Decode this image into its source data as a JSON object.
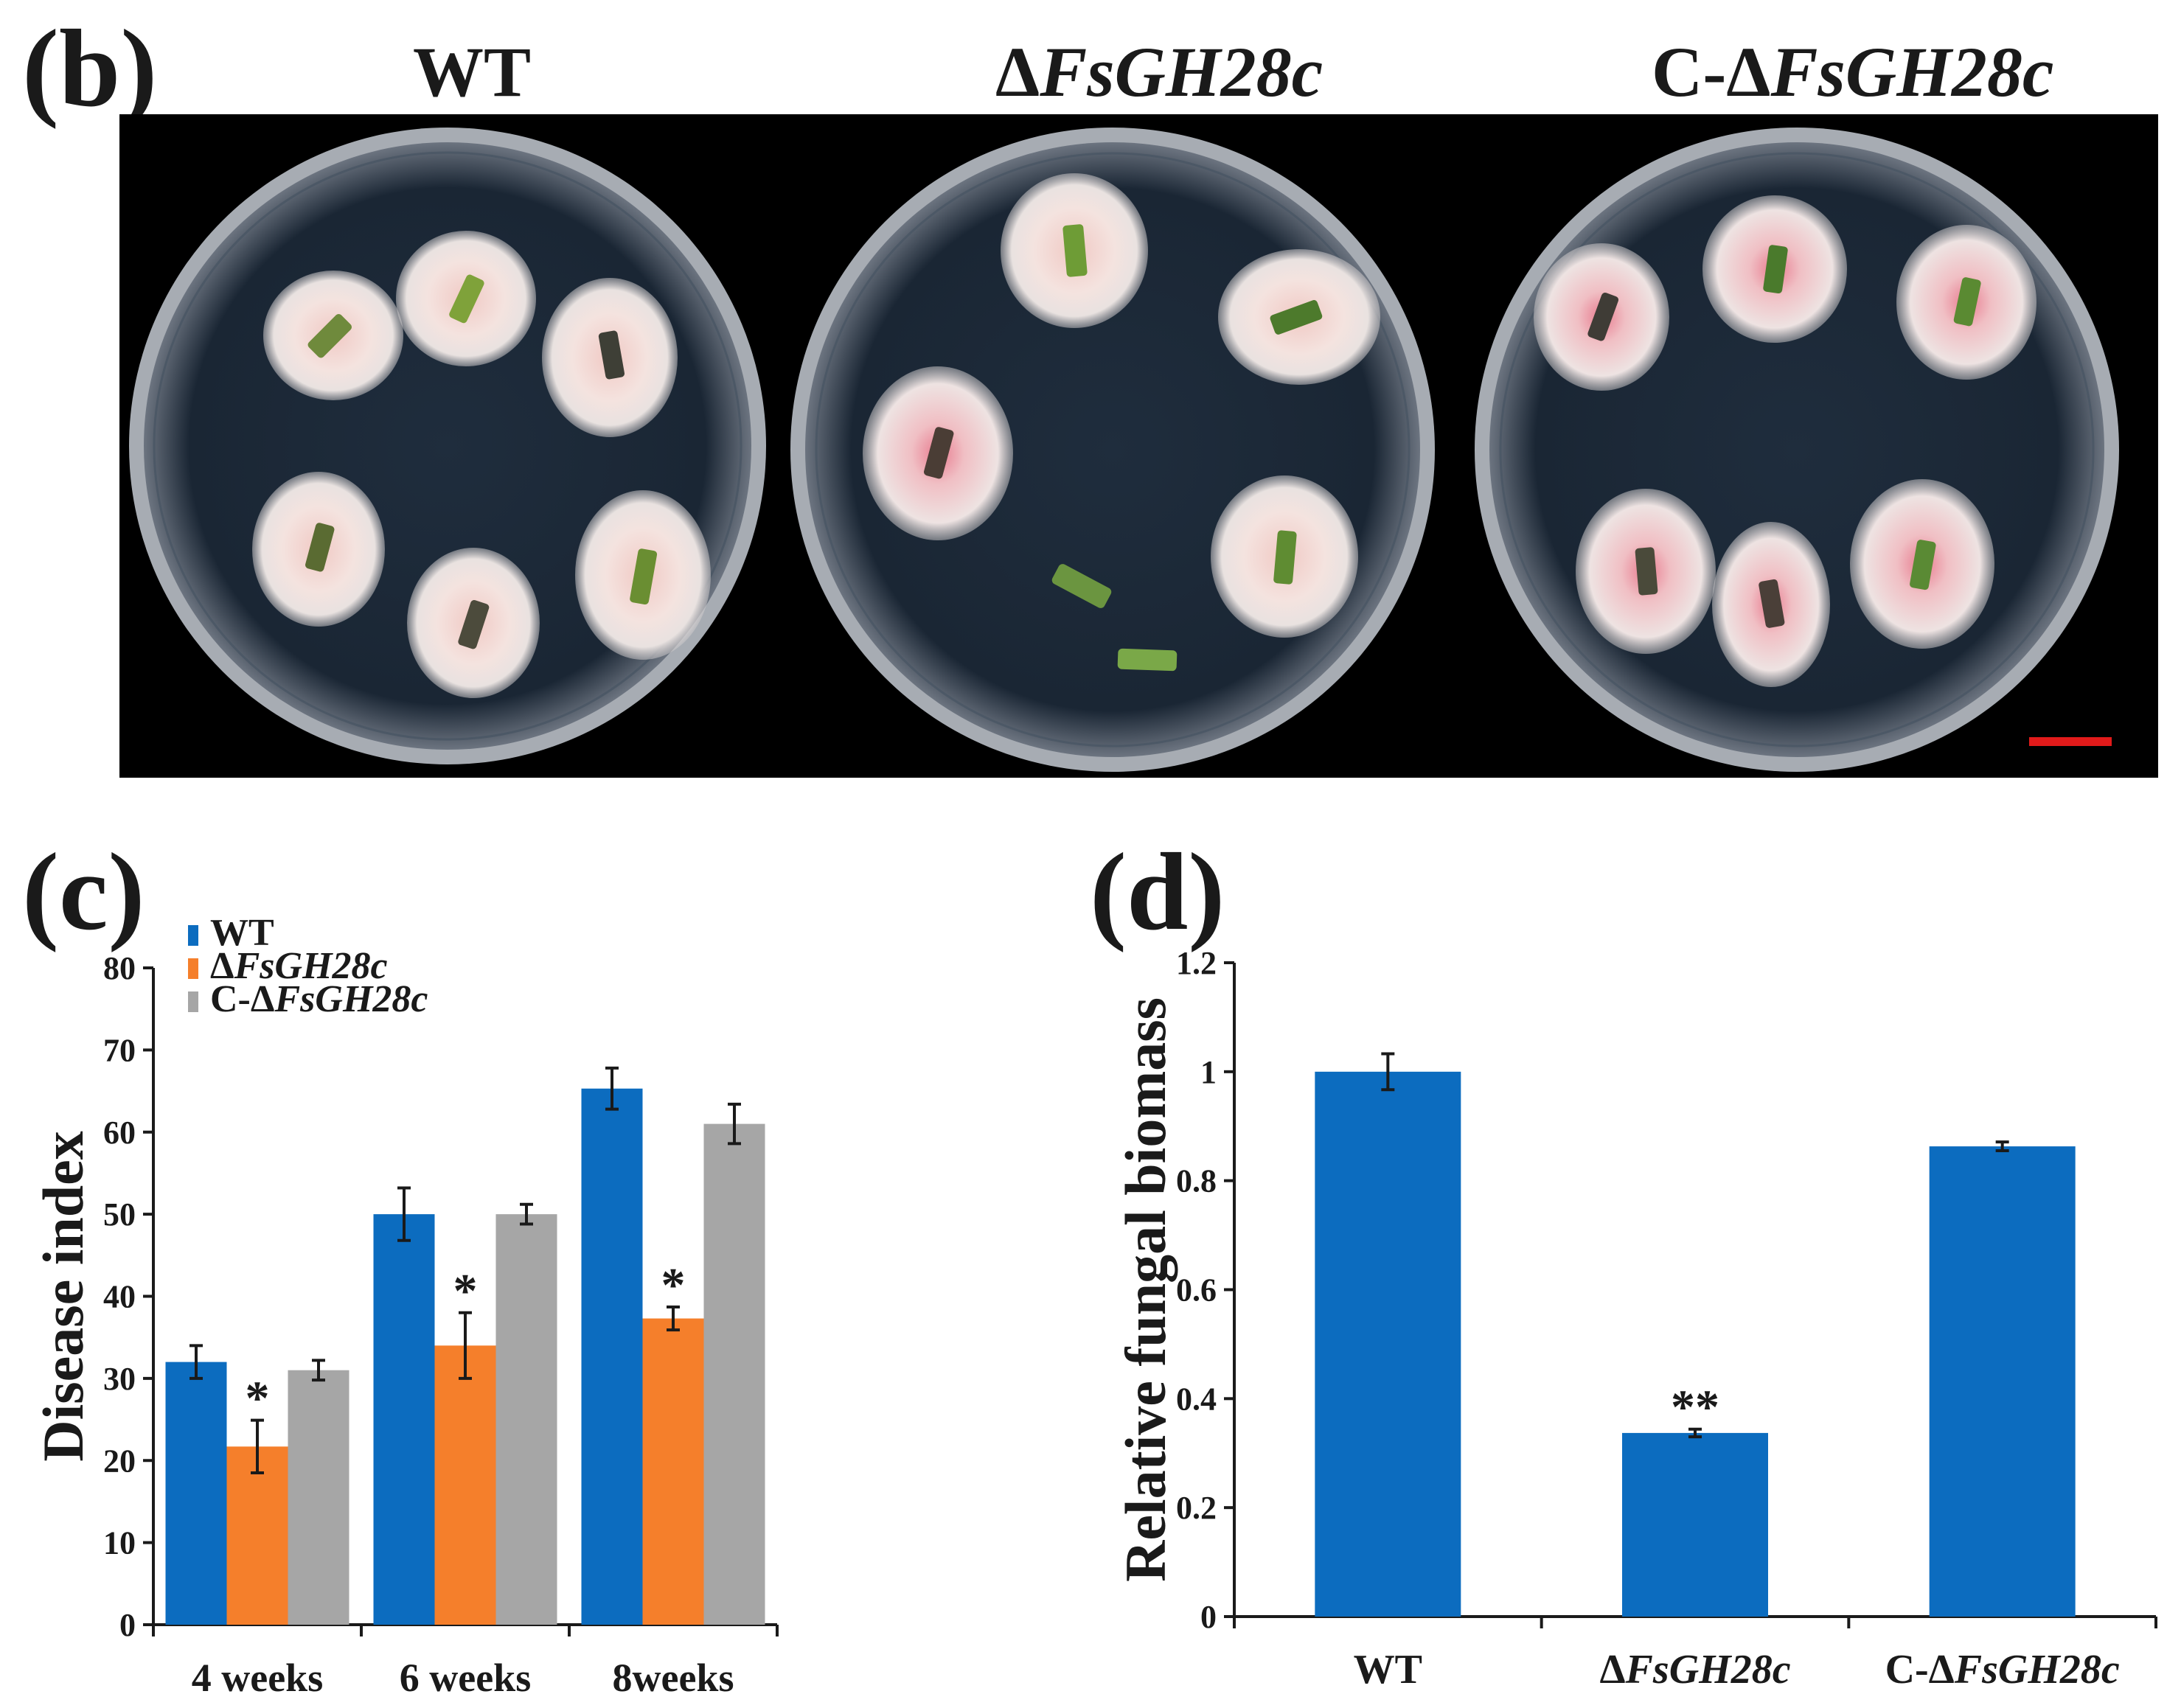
{
  "panel_b": {
    "letter": "(b)",
    "strains": [
      {
        "prefix": "",
        "name": "WT",
        "italic": false
      },
      {
        "prefix": "Δ",
        "name": "FsGH28c",
        "italic": true
      },
      {
        "prefix": "C-Δ",
        "name": "FsGH28c",
        "italic": true
      }
    ],
    "scale_bar_color": "#e11a1a"
  },
  "panel_c": {
    "letter": "(c)"
  },
  "panel_d": {
    "letter": "(d)"
  },
  "colors": {
    "wt": "#0c6cbf",
    "mutant": "#f57f2b",
    "complement": "#a6a6a6",
    "agar": "#1b2836",
    "colony": "#f3e4e0"
  },
  "chart_data": [
    {
      "id": "c",
      "type": "bar",
      "title": "",
      "xlabel": "",
      "ylabel": "Disease index",
      "ylim": [
        0,
        80
      ],
      "yticks": [
        0,
        10,
        20,
        30,
        40,
        50,
        60,
        70,
        80
      ],
      "categories": [
        "4 weeks",
        "6 weeks",
        "8weeks"
      ],
      "legend": {
        "position": "top-left"
      },
      "series": [
        {
          "name": "WT",
          "prefix": "",
          "italic": false,
          "color": "#0c6cbf",
          "values": [
            32,
            50,
            65.3
          ],
          "errors": [
            2,
            3.2,
            2.5
          ]
        },
        {
          "name": "FsGH28c",
          "prefix": "Δ",
          "italic": true,
          "color": "#f57f2b",
          "values": [
            21.7,
            34,
            37.3
          ],
          "errors": [
            3.2,
            4,
            1.4
          ]
        },
        {
          "name": "FsGH28c",
          "prefix": "C-Δ",
          "italic": true,
          "color": "#a6a6a6",
          "values": [
            31,
            50,
            61
          ],
          "errors": [
            1.2,
            1.2,
            2.4
          ]
        }
      ],
      "annotations": [
        {
          "series": 1,
          "category": 0,
          "text": "*"
        },
        {
          "series": 1,
          "category": 1,
          "text": "*"
        },
        {
          "series": 1,
          "category": 2,
          "text": "*"
        }
      ]
    },
    {
      "id": "d",
      "type": "bar",
      "title": "",
      "xlabel": "",
      "ylabel": "Relative fungal biomass",
      "ylim": [
        0,
        1.2
      ],
      "yticks": [
        "0",
        "0.2",
        "0.4",
        "0.6",
        "0.8",
        "1",
        "1.2"
      ],
      "categories": [
        {
          "prefix": "",
          "name": "WT",
          "italic": false
        },
        {
          "prefix": "Δ",
          "name": "FsGH28c",
          "italic": true
        },
        {
          "prefix": "C-Δ",
          "name": "FsGH28c",
          "italic": true
        }
      ],
      "series": [
        {
          "name": "Relative fungal biomass",
          "color": "#0c6cbf",
          "values": [
            1.0,
            0.337,
            0.863
          ],
          "errors": [
            0.033,
            0.007,
            0.008
          ]
        }
      ],
      "annotations": [
        {
          "series": 0,
          "category": 1,
          "text": "**"
        }
      ]
    }
  ]
}
